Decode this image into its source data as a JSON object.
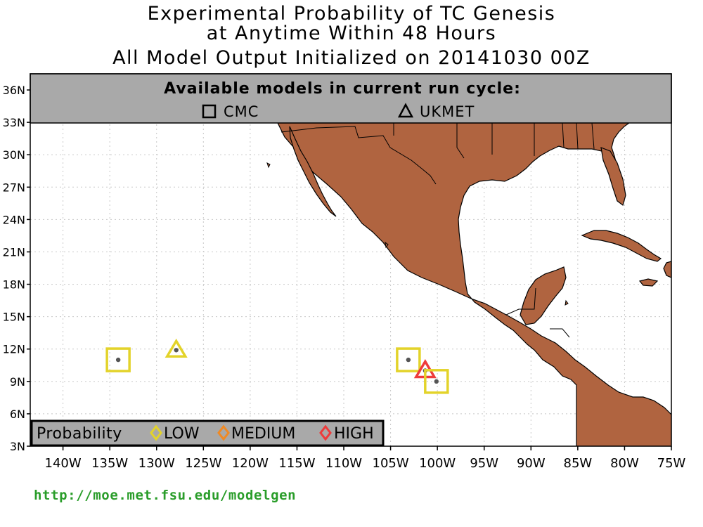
{
  "title": {
    "line1": "Experimental Probability of TC Genesis",
    "line2": "at Anytime Within 48 Hours",
    "line3": "All Model Output Initialized on 20141030 00Z"
  },
  "models_panel": {
    "heading": "Available models in current run cycle:",
    "models": [
      {
        "symbol": "square",
        "name": "CMC"
      },
      {
        "symbol": "triangle",
        "name": "UKMET"
      }
    ]
  },
  "legend": {
    "title": "Probability",
    "items": [
      {
        "label": "LOW",
        "color": "#e3d32a"
      },
      {
        "label": "MEDIUM",
        "color": "#f08a24"
      },
      {
        "label": "HIGH",
        "color": "#ee3b3b"
      }
    ]
  },
  "axes": {
    "lon_labels": [
      "140W",
      "135W",
      "130W",
      "125W",
      "120W",
      "115W",
      "110W",
      "105W",
      "100W",
      "95W",
      "90W",
      "85W",
      "80W",
      "75W"
    ],
    "lat_labels": [
      "36N",
      "33N",
      "30N",
      "27N",
      "24N",
      "21N",
      "18N",
      "15N",
      "12N",
      "9N",
      "6N",
      "3N"
    ],
    "lon_range": [
      -143.5,
      -75
    ],
    "lat_range": [
      3,
      37.5
    ]
  },
  "colors": {
    "land": "#b06440",
    "ocean": "#ffffff",
    "panel": "#a9a9a9",
    "grid": "#c8c8c8"
  },
  "markers": [
    {
      "model": "CMC",
      "shape": "square",
      "lon": -134.1,
      "lat": 11.0,
      "probability": "LOW"
    },
    {
      "model": "UKMET",
      "shape": "triangle",
      "lon": -127.9,
      "lat": 11.9,
      "probability": "LOW"
    },
    {
      "model": "CMC",
      "shape": "square",
      "lon": -103.1,
      "lat": 11.0,
      "probability": "LOW"
    },
    {
      "model": "UKMET",
      "shape": "triangle",
      "lon": -101.3,
      "lat": 10.0,
      "probability": "HIGH"
    },
    {
      "model": "CMC",
      "shape": "square",
      "lon": -100.1,
      "lat": 9.0,
      "probability": "LOW"
    }
  ],
  "footer_url": "http://moe.met.fsu.edu/modelgen"
}
